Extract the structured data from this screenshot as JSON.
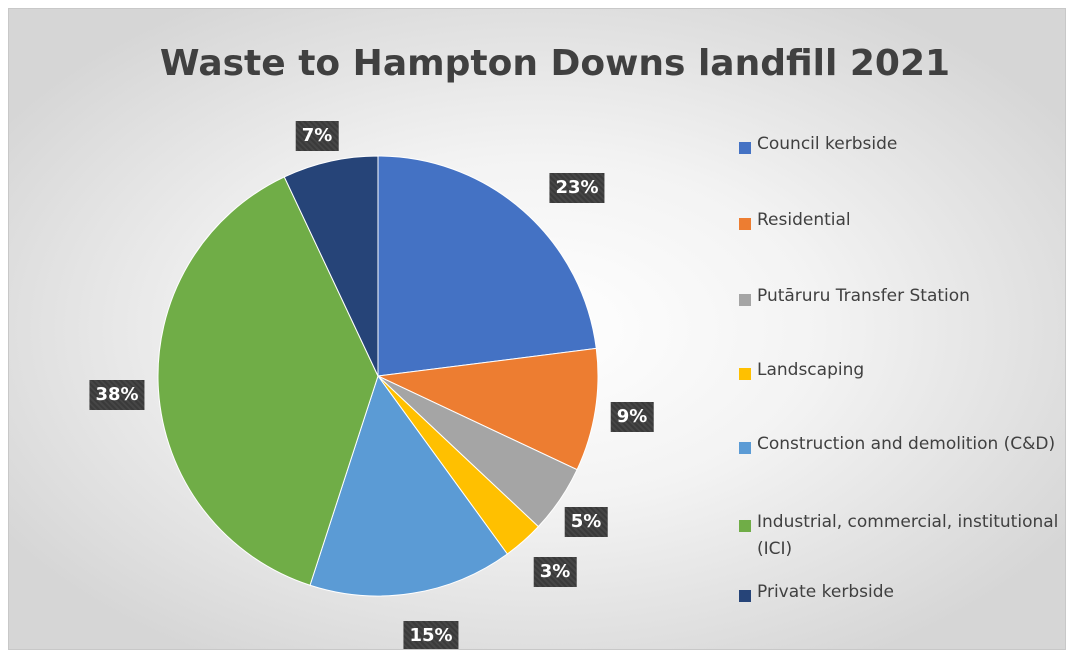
{
  "chart_data": {
    "type": "pie",
    "title": "Waste to Hampton Downs landfill 2021",
    "categories": [
      "Council kerbside",
      "Residential",
      "Putāruru Transfer Station",
      "Landscaping",
      "Construction and demolition (C&D)",
      "Industrial, commercial, institutional (ICI)",
      "Private kerbside"
    ],
    "values": [
      23,
      9,
      5,
      3,
      15,
      38,
      7
    ],
    "labels": [
      "23%",
      "9%",
      "5%",
      "3%",
      "15%",
      "38%",
      "7%"
    ],
    "colors": [
      "#4472C4",
      "#ED7D31",
      "#A5A5A5",
      "#FFC000",
      "#5B9BD5",
      "#70AD47",
      "#264478"
    ],
    "legend_position": "right"
  }
}
